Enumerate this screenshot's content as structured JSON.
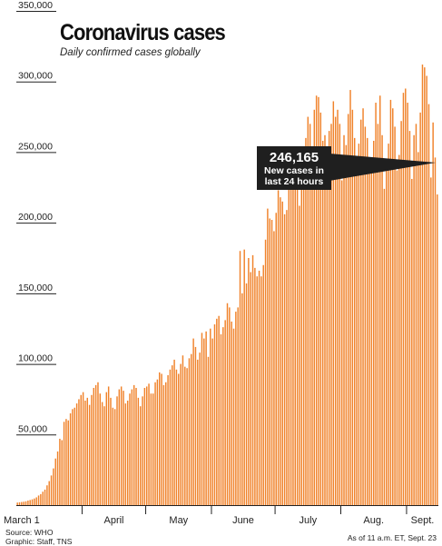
{
  "header": {
    "title": "Coronavirus cases",
    "subtitle": "Daily confirmed cases globally"
  },
  "callout": {
    "value": "246,165",
    "line1": "New cases in",
    "line2": "last 24 hours"
  },
  "footer": {
    "source": "Source: WHO",
    "graphic": "Graphic: Staff, TNS",
    "as_of": "As of 11 a.m. ET, Sept. 23"
  },
  "colors": {
    "bar": "#f0822a",
    "axis": "#222222",
    "callout_bg": "#1f1f1f"
  },
  "chart_data": {
    "type": "bar",
    "title": "Coronavirus cases",
    "subtitle": "Daily confirmed cases globally",
    "xlabel": "",
    "ylabel": "",
    "ylim": [
      0,
      350000
    ],
    "yticks": [
      50000,
      100000,
      150000,
      200000,
      250000,
      300000,
      350000
    ],
    "ytick_labels": [
      "50,000",
      "100,000",
      "150,000",
      "200,000",
      "250,000",
      "300,000",
      "350,000"
    ],
    "x_start": "March 1",
    "x_end": "Sept. 23",
    "month_labels": [
      {
        "label": "March 1",
        "day": 0
      },
      {
        "label": "April",
        "day": 31
      },
      {
        "label": "May",
        "day": 61
      },
      {
        "label": "June",
        "day": 92
      },
      {
        "label": "July",
        "day": 122
      },
      {
        "label": "Aug.",
        "day": 153
      },
      {
        "label": "Sept.",
        "day": 184
      }
    ],
    "grid": false,
    "legend": "none",
    "values": [
      1800,
      2000,
      2200,
      2400,
      2700,
      3200,
      3600,
      4100,
      4700,
      5500,
      6800,
      7800,
      9500,
      11000,
      14000,
      17000,
      21000,
      26000,
      33000,
      38000,
      47000,
      46000,
      59000,
      61000,
      60000,
      65000,
      68000,
      69000,
      72000,
      75000,
      78000,
      80000,
      74000,
      76000,
      71000,
      78000,
      83000,
      85000,
      87000,
      79000,
      73000,
      70000,
      80000,
      84000,
      76000,
      69000,
      68000,
      77000,
      82000,
      84000,
      81000,
      72000,
      74000,
      79000,
      82000,
      85000,
      83000,
      76000,
      70000,
      77000,
      83000,
      84000,
      86000,
      79000,
      79000,
      87000,
      89000,
      94000,
      93000,
      85000,
      87000,
      92000,
      96000,
      99000,
      103000,
      96000,
      93000,
      100000,
      106000,
      98000,
      97000,
      104000,
      107000,
      118000,
      112000,
      103000,
      108000,
      122000,
      118000,
      123000,
      105000,
      125000,
      118000,
      128000,
      132000,
      134000,
      121000,
      126000,
      131000,
      143000,
      140000,
      130000,
      125000,
      137000,
      140000,
      180000,
      150000,
      181000,
      157000,
      175000,
      165000,
      177000,
      168000,
      162000,
      166000,
      162000,
      170000,
      188000,
      210000,
      203000,
      202000,
      194000,
      207000,
      223000,
      218000,
      215000,
      206000,
      209000,
      227000,
      228000,
      232000,
      254000,
      245000,
      212000,
      231000,
      237000,
      260000,
      275000,
      270000,
      248000,
      280000,
      290000,
      289000,
      278000,
      258000,
      262000,
      241000,
      265000,
      270000,
      286000,
      275000,
      280000,
      270000,
      230000,
      262000,
      255000,
      277000,
      294000,
      280000,
      260000,
      240000,
      256000,
      273000,
      281000,
      268000,
      260000,
      235000,
      244000,
      258000,
      285000,
      270000,
      290000,
      262000,
      224000,
      240000,
      256000,
      287000,
      281000,
      268000,
      237000,
      248000,
      272000,
      292000,
      295000,
      285000,
      265000,
      231000,
      262000,
      270000,
      250000,
      278000,
      312000,
      310000,
      304000,
      284000,
      232000,
      271000,
      246165,
      220000
    ]
  }
}
